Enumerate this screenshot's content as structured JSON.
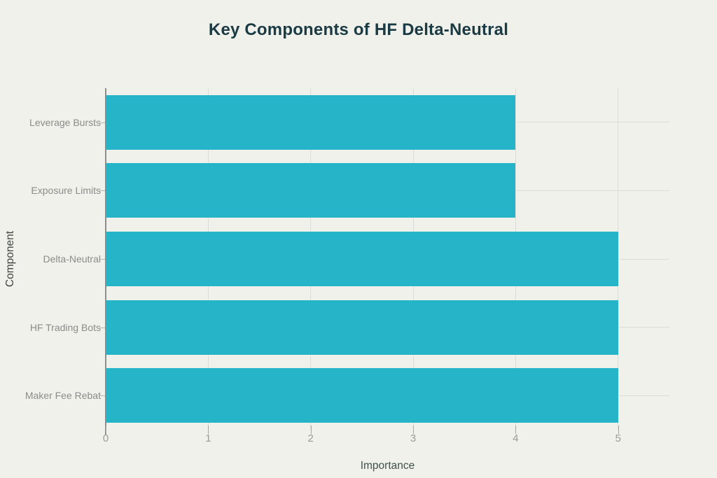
{
  "page": {
    "background_color": "#f0f1ea"
  },
  "chart_data": {
    "type": "bar",
    "orientation": "horizontal",
    "title": "Key Components of HF Delta-Neutral",
    "categories": [
      "Leverage Bursts",
      "Exposure Limits",
      "Delta-Neutral",
      "HF Trading Bots",
      "Maker Fee Rebat"
    ],
    "values": [
      4,
      4,
      5,
      5,
      5
    ],
    "xlabel": "Importance",
    "ylabel": "Component",
    "xlim": [
      0,
      5.5
    ],
    "xticks": [
      0,
      1,
      2,
      3,
      4,
      5
    ],
    "grid": true,
    "legend_position": "none",
    "colors": {
      "bar": "#26b5c8",
      "background": "#f0f1ea",
      "gridline": "#dcded6",
      "axis_line": "#8b8f8b",
      "tick_label": "#9a9b96",
      "category_label": "#8b8c88",
      "axis_title": "#41504b",
      "title": "#1a3a44"
    }
  }
}
